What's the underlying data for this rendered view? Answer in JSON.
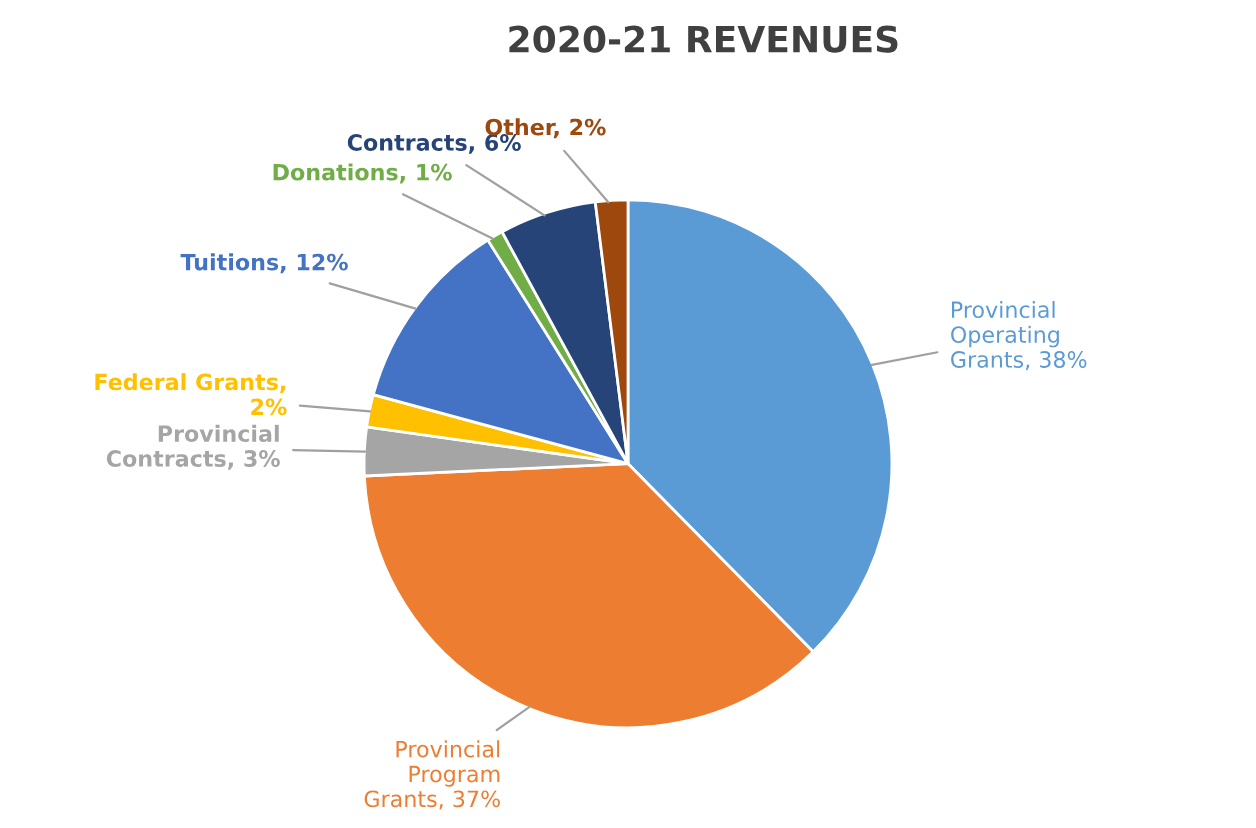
{
  "chart_data": {
    "type": "pie",
    "title": "2020-21 REVENUES",
    "categories": [
      "Provincial\nOperating\nGrants, 38%",
      "Provincial\nProgram\nGrants, 37%",
      "Provincial\nContracts, 3%",
      "Federal Grants,\n2%",
      "Tuitions, 12%",
      "Donations, 1%",
      "Contracts, 6%",
      "Other, 2%"
    ],
    "values": [
      38,
      37,
      3,
      2,
      12,
      1,
      6,
      2
    ],
    "colors": [
      "#5b9bd5",
      "#ed7d31",
      "#a5a5a5",
      "#ffc000",
      "#4472c4",
      "#70ad47",
      "#264478",
      "#9e480e"
    ]
  }
}
